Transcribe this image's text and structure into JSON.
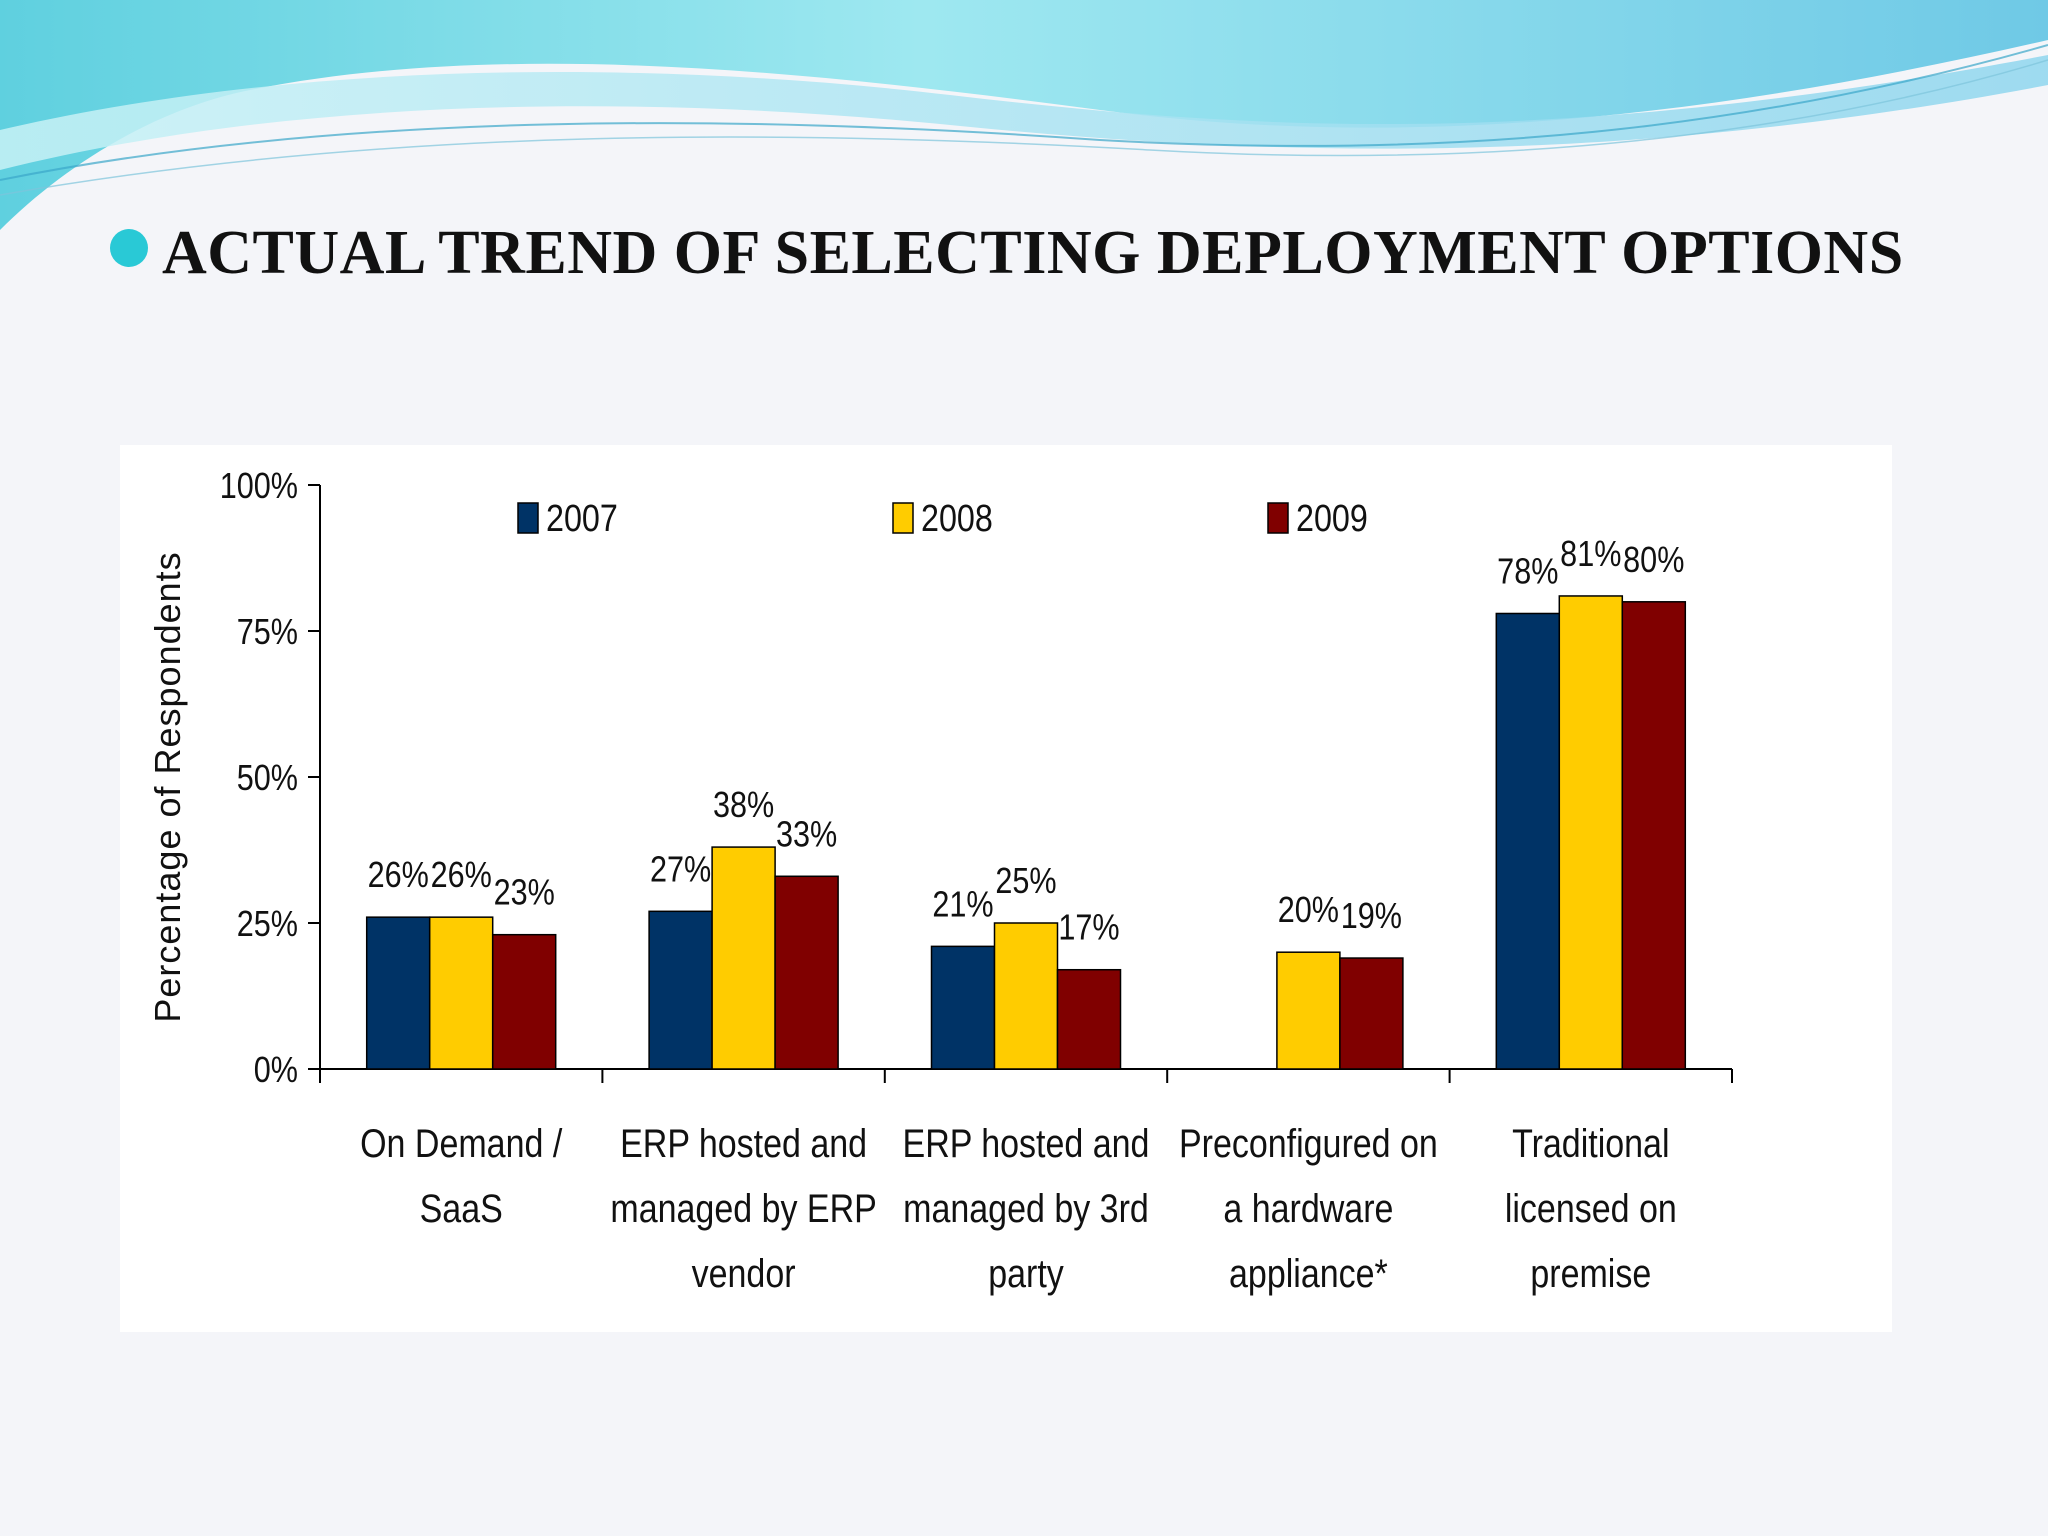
{
  "slide": {
    "title": "ACTUAL TREND OF SELECTING DEPLOYMENT OPTIONS"
  },
  "chart_data": {
    "type": "bar",
    "title": "",
    "ylabel": "Percentage of Respondents",
    "xlabel": "",
    "ylim": [
      0,
      100
    ],
    "yticks": [
      "0%",
      "25%",
      "50%",
      "75%",
      "100%"
    ],
    "ytick_values": [
      0,
      25,
      50,
      75,
      100
    ],
    "grid": false,
    "legend_position": "top",
    "categories": [
      [
        "On Demand /",
        "SaaS"
      ],
      [
        "ERP hosted and",
        "managed by ERP",
        "vendor"
      ],
      [
        "ERP hosted and",
        "managed by 3rd",
        "party"
      ],
      [
        "Preconfigured on",
        "a hardware",
        "appliance*"
      ],
      [
        "Traditional",
        "licensed on",
        "premise"
      ]
    ],
    "series": [
      {
        "name": "2007",
        "color": "#003366",
        "values": [
          26,
          27,
          21,
          null,
          78
        ],
        "labels": [
          "26%",
          "27%",
          "21%",
          null,
          "78%"
        ]
      },
      {
        "name": "2008",
        "color": "#ffcc00",
        "values": [
          26,
          38,
          25,
          20,
          81
        ],
        "labels": [
          "26%",
          "38%",
          "25%",
          "20%",
          "81%"
        ]
      },
      {
        "name": "2009",
        "color": "#800000",
        "values": [
          23,
          33,
          17,
          19,
          80
        ],
        "labels": [
          "23%",
          "33%",
          "17%",
          "19%",
          "80%"
        ]
      }
    ]
  }
}
